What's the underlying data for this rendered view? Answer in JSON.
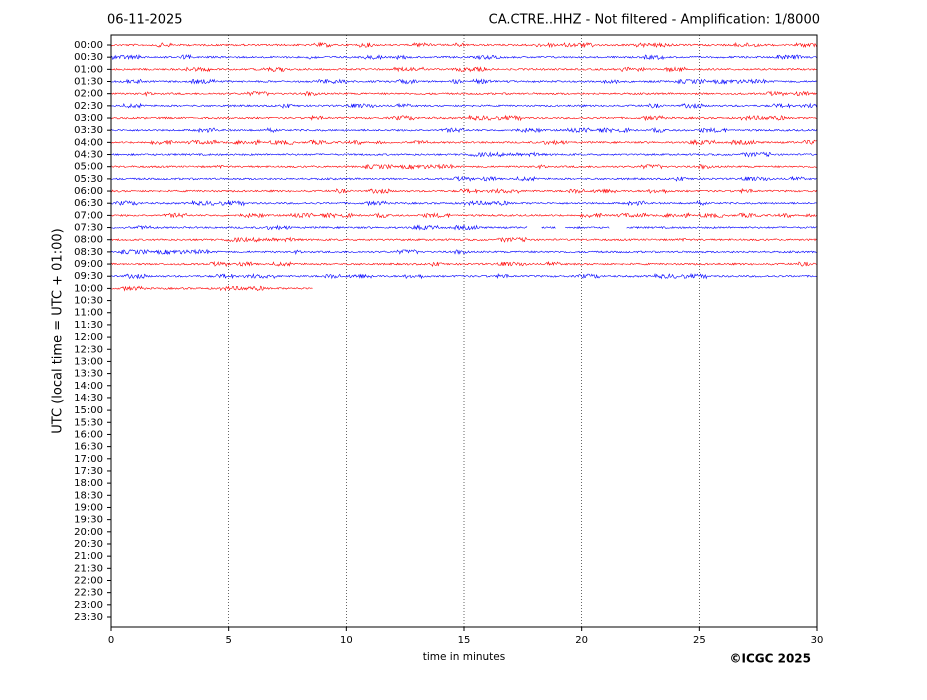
{
  "chart_data": {
    "type": "helicorder",
    "date": "06-11-2025",
    "title": "CA.CTRE..HHZ - Not filtered - Amplification: 1/8000",
    "ylabel": "UTC (local time = UTC + 01:00)",
    "xlabel": "time in minutes",
    "credit": "©ICGC 2025",
    "xlim": [
      0,
      30
    ],
    "xticks": [
      0,
      5,
      10,
      15,
      20,
      25,
      30
    ],
    "grid": true,
    "categories": [
      "00:00",
      "00:30",
      "01:00",
      "01:30",
      "02:00",
      "02:30",
      "03:00",
      "03:30",
      "04:00",
      "04:30",
      "05:00",
      "05:30",
      "06:00",
      "06:30",
      "07:00",
      "07:30",
      "08:00",
      "08:30",
      "09:00",
      "09:30",
      "10:00",
      "10:30",
      "11:00",
      "11:30",
      "12:00",
      "12:30",
      "13:00",
      "13:30",
      "14:00",
      "14:30",
      "15:00",
      "15:30",
      "16:00",
      "16:30",
      "17:00",
      "17:30",
      "18:00",
      "18:30",
      "19:00",
      "19:30",
      "20:00",
      "20:30",
      "21:00",
      "21:30",
      "22:00",
      "22:30",
      "23:00",
      "23:30"
    ],
    "rows": [
      {
        "color": "#ff0000",
        "segments": [
          [
            0,
            30
          ]
        ]
      },
      {
        "color": "#0000ff",
        "segments": [
          [
            0,
            30
          ]
        ]
      },
      {
        "color": "#ff0000",
        "segments": [
          [
            0,
            30
          ]
        ]
      },
      {
        "color": "#0000ff",
        "segments": [
          [
            0,
            30
          ]
        ]
      },
      {
        "color": "#ff0000",
        "segments": [
          [
            0,
            30
          ]
        ]
      },
      {
        "color": "#0000ff",
        "segments": [
          [
            0,
            30
          ]
        ]
      },
      {
        "color": "#ff0000",
        "segments": [
          [
            0,
            30
          ]
        ]
      },
      {
        "color": "#0000ff",
        "segments": [
          [
            0,
            30
          ]
        ]
      },
      {
        "color": "#ff0000",
        "segments": [
          [
            0,
            30
          ]
        ]
      },
      {
        "color": "#0000ff",
        "segments": [
          [
            0,
            30
          ]
        ]
      },
      {
        "color": "#ff0000",
        "segments": [
          [
            0,
            30
          ]
        ]
      },
      {
        "color": "#0000ff",
        "segments": [
          [
            0,
            30
          ]
        ]
      },
      {
        "color": "#ff0000",
        "segments": [
          [
            0,
            30
          ]
        ]
      },
      {
        "color": "#0000ff",
        "segments": [
          [
            0,
            30
          ]
        ]
      },
      {
        "color": "#ff0000",
        "segments": [
          [
            0,
            30
          ]
        ]
      },
      {
        "color": "#0000ff",
        "segments": [
          [
            0,
            17.7
          ],
          [
            18.3,
            18.9
          ],
          [
            19.3,
            21.2
          ],
          [
            21.9,
            30
          ]
        ]
      },
      {
        "color": "#ff0000",
        "segments": [
          [
            0,
            30
          ]
        ]
      },
      {
        "color": "#0000ff",
        "segments": [
          [
            0,
            30
          ]
        ]
      },
      {
        "color": "#ff0000",
        "segments": [
          [
            0,
            30
          ]
        ]
      },
      {
        "color": "#0000ff",
        "segments": [
          [
            0,
            30
          ]
        ]
      },
      {
        "color": "#ff0000",
        "segments": [
          [
            0,
            8.6
          ]
        ]
      }
    ]
  }
}
